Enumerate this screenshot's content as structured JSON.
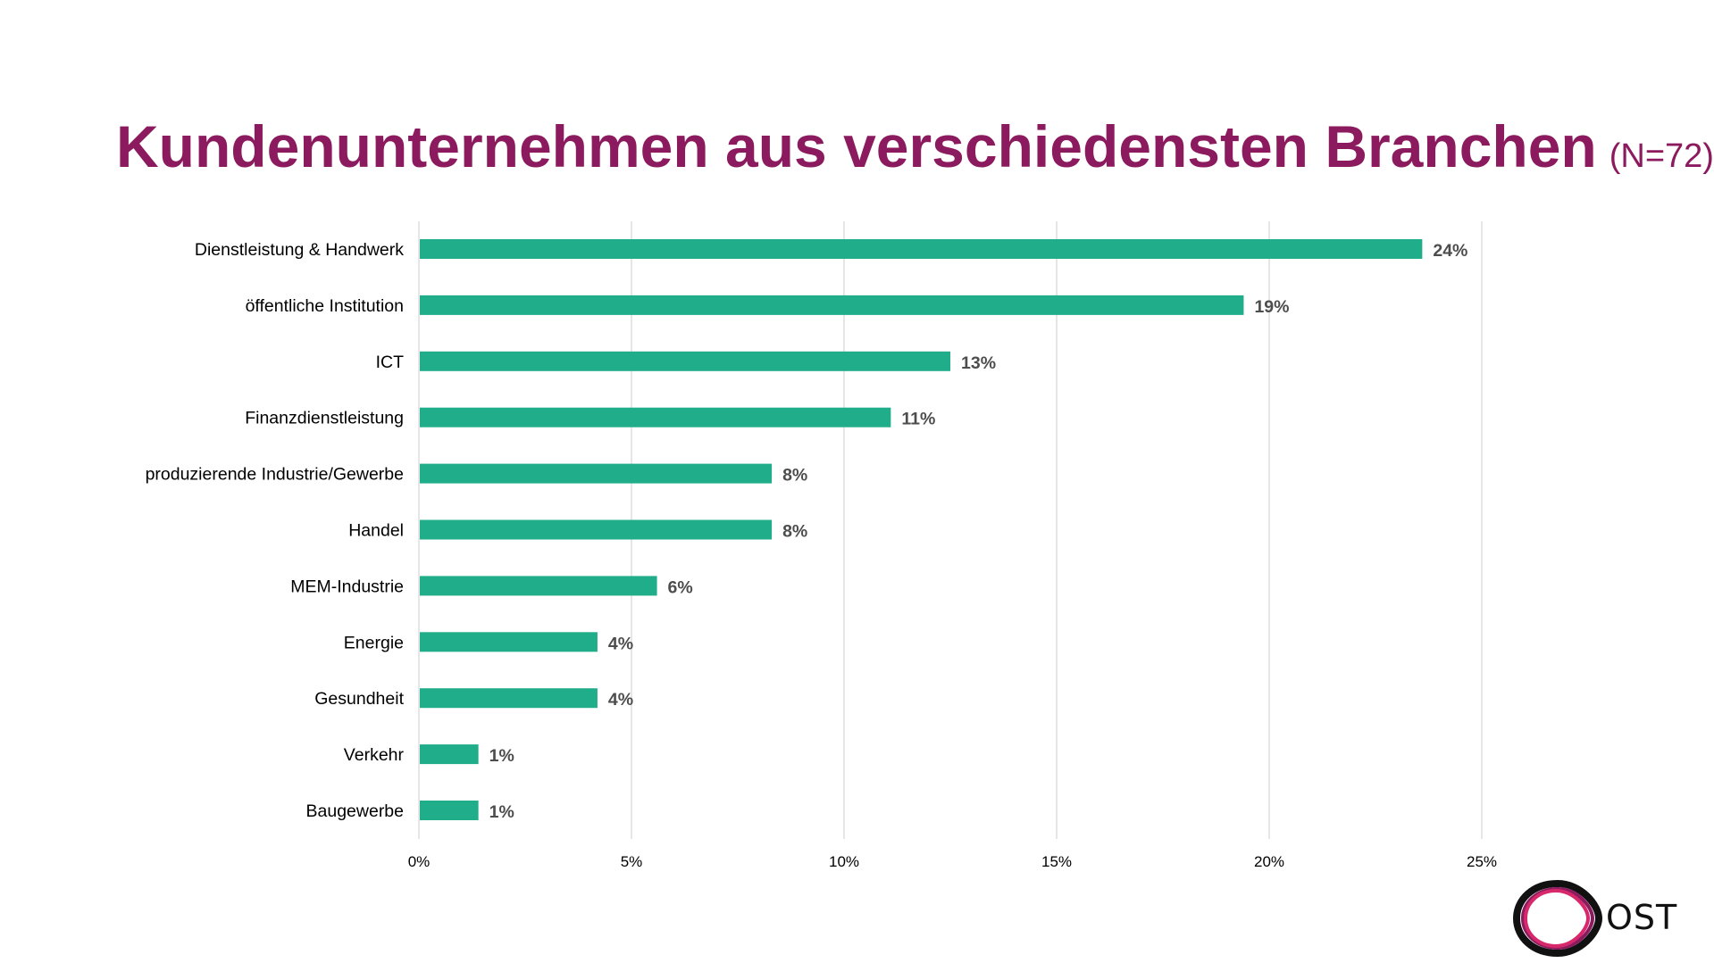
{
  "title": {
    "main": "Kundenunternehmen aus verschiedensten Branchen",
    "sub": "(N=72)"
  },
  "colors": {
    "title": "#8B1A5E",
    "bar": "#20AD8A",
    "gridline": "#DDDDDD",
    "value_label": "#4D4D4D",
    "logo_dark": "#111111",
    "logo_pink": "#D6286A",
    "logo_purple": "#8B1A5E"
  },
  "logo": {
    "icon": "ost-ring-logo-icon",
    "text": "OST"
  },
  "chart_data": {
    "type": "bar",
    "orientation": "horizontal",
    "title": "Kundenunternehmen aus verschiedensten Branchen (N=72)",
    "xlabel": "",
    "ylabel": "",
    "xlim": [
      0,
      25
    ],
    "x_ticks": [
      0,
      5,
      10,
      15,
      20,
      25
    ],
    "x_tick_labels": [
      "0%",
      "5%",
      "10%",
      "15%",
      "20%",
      "25%"
    ],
    "grid": "vertical",
    "legend": "none",
    "categories": [
      "Dienstleistung & Handwerk",
      "öffentliche Institution",
      "ICT",
      "Finanzdienstleistung",
      "produzierende Industrie/Gewerbe",
      "Handel",
      "MEM-Industrie",
      "Energie",
      "Gesundheit",
      "Verkehr",
      "Baugewerbe"
    ],
    "values": [
      23.6,
      19.4,
      12.5,
      11.1,
      8.3,
      8.3,
      5.6,
      4.2,
      4.2,
      1.4,
      1.4
    ],
    "value_labels": [
      "24%",
      "19%",
      "13%",
      "11%",
      "8%",
      "8%",
      "6%",
      "4%",
      "4%",
      "1%",
      "1%"
    ],
    "unit": "%"
  }
}
